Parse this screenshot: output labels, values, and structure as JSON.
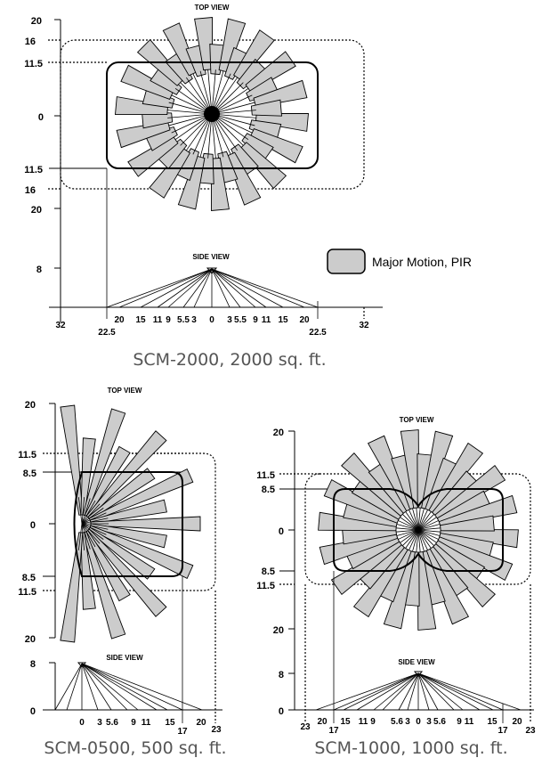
{
  "legend": {
    "label": "Major Motion, PIR",
    "swatch_color": "#cccccc"
  },
  "colors": {
    "beam_fill": "#cccccc",
    "caption": "#555555"
  },
  "sensors": [
    {
      "caption": "SCM-2000, 2000 sq. ft.",
      "top_view_label": "TOP VIEW",
      "side_view_label": "SIDE VIEW",
      "top_y_ticks": [
        "20",
        "16",
        "11.5",
        "0",
        "11.5",
        "16",
        "20"
      ],
      "side_y_ticks": [
        "8"
      ],
      "side_x_ticks": [
        "32",
        "22.5",
        "20",
        "15",
        "11",
        "9",
        "5.5",
        "3",
        "0",
        "3",
        "5.5",
        "9",
        "11",
        "15",
        "20",
        "22.5",
        "32"
      ]
    },
    {
      "caption": "SCM-0500, 500 sq. ft.",
      "top_view_label": "TOP VIEW",
      "side_view_label": "SIDE VIEW",
      "top_y_ticks": [
        "20",
        "11.5",
        "8.5",
        "0",
        "8.5",
        "11.5",
        "20"
      ],
      "side_y_ticks": [
        "8",
        "0"
      ],
      "side_x_ticks": [
        "0",
        "3",
        "5.6",
        "9",
        "11",
        "15",
        "17",
        "20",
        "23"
      ]
    },
    {
      "caption": "SCM-1000, 1000 sq. ft.",
      "top_view_label": "TOP VIEW",
      "side_view_label": "SIDE VIEW",
      "top_y_ticks": [
        "20",
        "11.5",
        "8.5",
        "0",
        "8.5",
        "11.5",
        "20"
      ],
      "side_y_ticks": [
        "8",
        "0"
      ],
      "side_x_ticks": [
        "23",
        "20",
        "17",
        "15",
        "11",
        "9",
        "5.6",
        "3",
        "0",
        "3",
        "5.6",
        "9",
        "11",
        "15",
        "17",
        "20",
        "23"
      ]
    }
  ]
}
